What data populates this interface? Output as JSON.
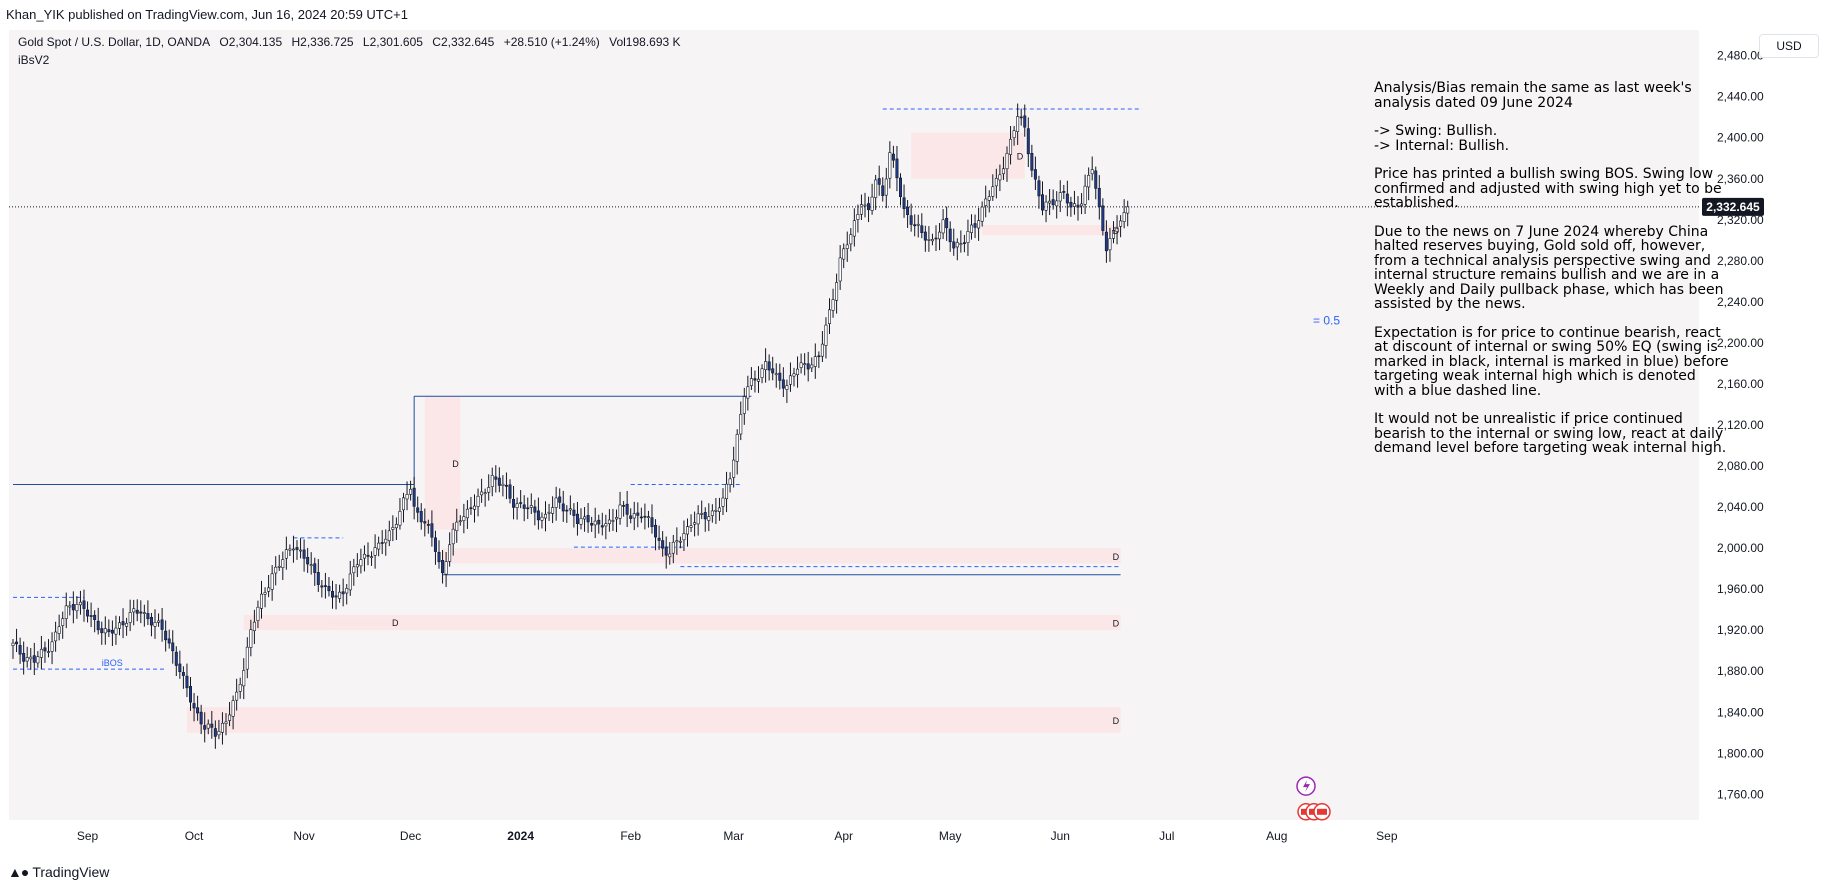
{
  "published_by": "Khan_YIK published on TradingView.com, Jun 16, 2024 20:59 UTC+1",
  "legend": {
    "symbol": "Gold Spot / U.S. Dollar, 1D, OANDA",
    "open": "O2,304.135",
    "high": "H2,336.725",
    "low": "L2,301.605",
    "close": "C2,332.645",
    "change": "+28.510 (+1.24%)",
    "volume": "Vol198.693 K",
    "up_color": "#089981"
  },
  "indicator_name": "iBsV2",
  "currency": "USD",
  "last_price_label": "2,332.645",
  "analysis": [
    "Analysis/Bias remain the same as last week's analysis dated 09 June 2024",
    "-> Swing: Bullish.\n-> Internal: Bullish.",
    "Price has printed a bullish swing BOS.  Swing low confirmed and adjusted with swing high yet to be established.",
    "Due to the news on 7 June 2024 whereby China halted reserves buying, Gold sold off, however, from a technical analysis perspective swing and internal structure remains bullish and we are in a Weekly and Daily pullback phase, which has been assisted by the news.",
    "Expectation is for price to continue bearish, react at discount of internal or swing 50% EQ (swing is marked in black, internal is marked in blue) before targeting weak internal high which is denoted with a blue dashed line.",
    "It would not be unrealistic if price continued bearish to the internal or swing low, react at daily demand level before targeting weak internal high."
  ],
  "chart_labels": {
    "ibos": "iBOS",
    "demand": "D",
    "eq": "= 0.5"
  },
  "footer_brand": "TradingView",
  "colors": {
    "bull_body": "#ffffff",
    "bear_body": "#1e3a8a",
    "wick": "#131722",
    "zone_fill": "#fbe5e7",
    "internal_blue": "#2962ff",
    "swing_line": "#1e4fa0",
    "background": "#f7f4f6"
  },
  "chart_data": {
    "type": "candlestick",
    "title": "Gold Spot / U.S. Dollar, 1D, OANDA",
    "ylim": [
      1735,
      2505
    ],
    "y_ticks": [
      1760,
      1800,
      1840,
      1880,
      1920,
      1960,
      2000,
      2040,
      2080,
      2120,
      2160,
      2200,
      2240,
      2280,
      2320,
      2360,
      2400,
      2440,
      2480
    ],
    "y_tick_labels": [
      "1,760.000",
      "1,800.000",
      "1,840.000",
      "1,880.000",
      "1,920.000",
      "1,960.000",
      "2,000.000",
      "2,040.000",
      "2,080.000",
      "2,120.000",
      "2,160.000",
      "2,200.000",
      "2,240.000",
      "2,280.000",
      "2,320.000",
      "2,360.000",
      "2,400.000",
      "2,440.000",
      "2,480.000"
    ],
    "x_range": [
      0,
      340
    ],
    "x_ticks": [
      {
        "label": "Sep",
        "idx": 21
      },
      {
        "label": "Oct",
        "idx": 51
      },
      {
        "label": "Nov",
        "idx": 82
      },
      {
        "label": "Dec",
        "idx": 112
      },
      {
        "label": "2024",
        "idx": 143
      },
      {
        "label": "Feb",
        "idx": 174
      },
      {
        "label": "Mar",
        "idx": 203
      },
      {
        "label": "Apr",
        "idx": 234
      },
      {
        "label": "May",
        "idx": 264
      },
      {
        "label": "Jun",
        "idx": 295
      },
      {
        "label": "Jul",
        "idx": 325
      },
      {
        "label": "Aug",
        "idx": 356
      },
      {
        "label": "Sep",
        "idx": 387
      }
    ],
    "last_price": 2332.645,
    "waypoints": [
      [
        0,
        1905
      ],
      [
        3,
        1895
      ],
      [
        6,
        1890
      ],
      [
        9,
        1900
      ],
      [
        12,
        1915
      ],
      [
        15,
        1940
      ],
      [
        18,
        1948
      ],
      [
        21,
        1935
      ],
      [
        24,
        1925
      ],
      [
        27,
        1915
      ],
      [
        30,
        1925
      ],
      [
        33,
        1935
      ],
      [
        36,
        1938
      ],
      [
        39,
        1930
      ],
      [
        42,
        1920
      ],
      [
        45,
        1900
      ],
      [
        48,
        1870
      ],
      [
        51,
        1845
      ],
      [
        54,
        1825
      ],
      [
        57,
        1820
      ],
      [
        60,
        1832
      ],
      [
        63,
        1855
      ],
      [
        65,
        1885
      ],
      [
        67,
        1920
      ],
      [
        70,
        1950
      ],
      [
        73,
        1975
      ],
      [
        76,
        1988
      ],
      [
        79,
        2005
      ],
      [
        82,
        1990
      ],
      [
        85,
        1975
      ],
      [
        88,
        1960
      ],
      [
        91,
        1950
      ],
      [
        94,
        1965
      ],
      [
        97,
        1985
      ],
      [
        100,
        1995
      ],
      [
        103,
        2000
      ],
      [
        106,
        2015
      ],
      [
        109,
        2035
      ],
      [
        112,
        2060
      ],
      [
        113,
        2040
      ],
      [
        116,
        2025
      ],
      [
        119,
        2000
      ],
      [
        121,
        1975
      ],
      [
        123,
        2005
      ],
      [
        126,
        2030
      ],
      [
        129,
        2040
      ],
      [
        132,
        2050
      ],
      [
        135,
        2070
      ],
      [
        138,
        2060
      ],
      [
        141,
        2045
      ],
      [
        144,
        2040
      ],
      [
        147,
        2035
      ],
      [
        150,
        2030
      ],
      [
        153,
        2045
      ],
      [
        156,
        2040
      ],
      [
        159,
        2025
      ],
      [
        162,
        2030
      ],
      [
        165,
        2020
      ],
      [
        168,
        2025
      ],
      [
        171,
        2040
      ],
      [
        174,
        2030
      ],
      [
        177,
        2035
      ],
      [
        180,
        2020
      ],
      [
        183,
        2000
      ],
      [
        185,
        1995
      ],
      [
        188,
        2010
      ],
      [
        191,
        2025
      ],
      [
        194,
        2030
      ],
      [
        197,
        2035
      ],
      [
        200,
        2045
      ],
      [
        202,
        2070
      ],
      [
        204,
        2110
      ],
      [
        206,
        2150
      ],
      [
        209,
        2165
      ],
      [
        212,
        2180
      ],
      [
        215,
        2165
      ],
      [
        218,
        2160
      ],
      [
        221,
        2175
      ],
      [
        224,
        2180
      ],
      [
        227,
        2185
      ],
      [
        230,
        2230
      ],
      [
        233,
        2280
      ],
      [
        236,
        2305
      ],
      [
        239,
        2340
      ],
      [
        241,
        2325
      ],
      [
        243,
        2360
      ],
      [
        245,
        2345
      ],
      [
        247,
        2385
      ],
      [
        249,
        2360
      ],
      [
        251,
        2330
      ],
      [
        253,
        2320
      ],
      [
        256,
        2305
      ],
      [
        259,
        2300
      ],
      [
        262,
        2315
      ],
      [
        265,
        2295
      ],
      [
        268,
        2300
      ],
      [
        271,
        2315
      ],
      [
        274,
        2340
      ],
      [
        277,
        2355
      ],
      [
        280,
        2385
      ],
      [
        283,
        2420
      ],
      [
        285,
        2410
      ],
      [
        287,
        2370
      ],
      [
        290,
        2330
      ],
      [
        293,
        2340
      ],
      [
        296,
        2345
      ],
      [
        298,
        2330
      ],
      [
        301,
        2340
      ],
      [
        304,
        2370
      ],
      [
        306,
        2330
      ],
      [
        308,
        2295
      ],
      [
        310,
        2305
      ],
      [
        312,
        2320
      ],
      [
        314,
        2330
      ]
    ],
    "demand_zones": [
      {
        "from": 89,
        "to": 109,
        "lo": 1924,
        "hi": 1932
      },
      {
        "from": 116,
        "to": 126,
        "lo": 2018,
        "hi": 2148
      },
      {
        "from": 121,
        "to": 312,
        "lo": 1985,
        "hi": 2000
      },
      {
        "from": 65,
        "to": 312,
        "lo": 1920,
        "hi": 1935
      },
      {
        "from": 49,
        "to": 312,
        "lo": 1820,
        "hi": 1845
      },
      {
        "from": 273,
        "to": 312,
        "lo": 2305,
        "hi": 2315
      },
      {
        "from": 253,
        "to": 285,
        "lo": 2360,
        "hi": 2405
      }
    ],
    "swing_lines": [
      {
        "from": 0,
        "to": 113,
        "price": 2062,
        "style": "solid"
      },
      {
        "from": 113,
        "to": 208,
        "price": 2148,
        "style": "solid"
      },
      {
        "from": 121,
        "to": 312,
        "price": 1974,
        "style": "solid"
      }
    ],
    "internal_lines": [
      {
        "from": 0,
        "to": 43,
        "price": 1882,
        "style": "dashed"
      },
      {
        "from": 0,
        "to": 20,
        "price": 1952,
        "style": "dashed"
      },
      {
        "from": 79,
        "to": 93,
        "price": 2010,
        "style": "dashed"
      },
      {
        "from": 174,
        "to": 205,
        "price": 2062,
        "style": "dashed"
      },
      {
        "from": 158,
        "to": 189,
        "price": 2001,
        "style": "dashed"
      },
      {
        "from": 188,
        "to": 312,
        "price": 1982,
        "style": "dashed"
      },
      {
        "from": 245,
        "to": 318,
        "price": 2428,
        "style": "dashed"
      }
    ]
  }
}
